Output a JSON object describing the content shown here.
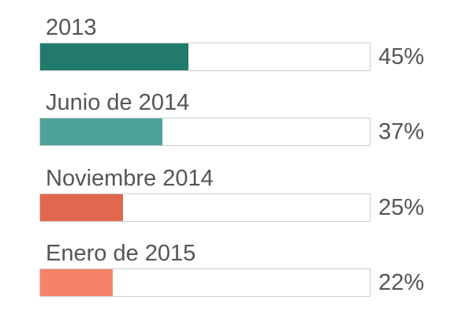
{
  "chart_data": {
    "type": "bar",
    "orientation": "horizontal",
    "categories": [
      "2013",
      "Junio de 2014",
      "Noviembre 2014",
      "Enero de 2015"
    ],
    "values": [
      45,
      37,
      25,
      22
    ],
    "value_labels": [
      "45%",
      "37%",
      "25%",
      "22%"
    ],
    "colors": [
      "#217a6b",
      "#4da399",
      "#e0684f",
      "#f7826a"
    ],
    "xlim": [
      0,
      100
    ],
    "grid": false
  }
}
